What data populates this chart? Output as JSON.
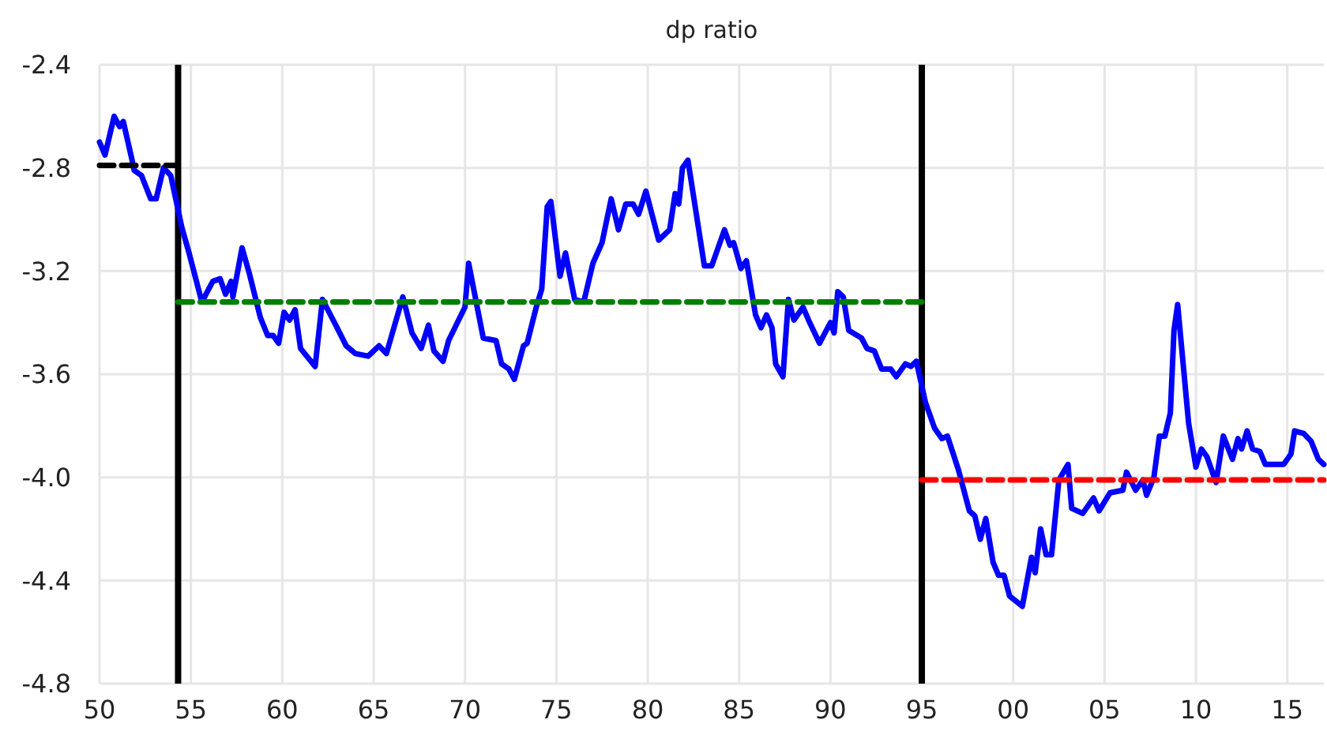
{
  "chart_data": {
    "type": "line",
    "title": "dp ratio",
    "xlim": [
      1950,
      2017
    ],
    "ylim": [
      -4.8,
      -2.4
    ],
    "xticks": [
      {
        "value": 1950,
        "label": "50"
      },
      {
        "value": 1955,
        "label": "55"
      },
      {
        "value": 1960,
        "label": "60"
      },
      {
        "value": 1965,
        "label": "65"
      },
      {
        "value": 1970,
        "label": "70"
      },
      {
        "value": 1975,
        "label": "75"
      },
      {
        "value": 1980,
        "label": "80"
      },
      {
        "value": 1985,
        "label": "85"
      },
      {
        "value": 1990,
        "label": "90"
      },
      {
        "value": 1995,
        "label": "95"
      },
      {
        "value": 2000,
        "label": "00"
      },
      {
        "value": 2005,
        "label": "05"
      },
      {
        "value": 2010,
        "label": "10"
      },
      {
        "value": 2015,
        "label": "15"
      }
    ],
    "yticks": [
      -4.8,
      -4.4,
      {
        "value": -4.0,
        "label": "-4.0"
      },
      -3.6,
      -3.2,
      -2.8,
      -2.4
    ],
    "grid": true,
    "marker": "none",
    "line_style": "solid",
    "series": [
      {
        "color": "#0000ff",
        "x": [
          1950.0,
          1950.3,
          1950.8,
          1951.1,
          1951.3,
          1951.75,
          1951.9,
          1952.3,
          1952.8,
          1953.1,
          1953.5,
          1953.9,
          1954.5,
          1954.9,
          1955.6,
          1956.2,
          1956.6,
          1956.9,
          1957.2,
          1957.3,
          1957.8,
          1958.2,
          1958.8,
          1959.2,
          1959.5,
          1959.8,
          1960.1,
          1960.4,
          1960.7,
          1961.0,
          1961.8,
          1962.2,
          1963.0,
          1963.5,
          1964.0,
          1964.7,
          1965.3,
          1965.7,
          1966.6,
          1967.1,
          1967.6,
          1968.0,
          1968.3,
          1968.8,
          1969.1,
          1970.0,
          1970.2,
          1971.0,
          1971.7,
          1972.0,
          1972.4,
          1972.7,
          1973.2,
          1973.4,
          1973.9,
          1974.2,
          1974.5,
          1974.7,
          1975.2,
          1975.5,
          1976.0,
          1976.5,
          1977.0,
          1977.5,
          1978.0,
          1978.4,
          1978.8,
          1979.2,
          1979.5,
          1979.9,
          1980.6,
          1981.2,
          1981.5,
          1981.7,
          1981.9,
          1982.2,
          1983.1,
          1983.5,
          1984.2,
          1984.5,
          1984.7,
          1985.1,
          1985.4,
          1985.9,
          1986.2,
          1986.5,
          1986.8,
          1987.0,
          1987.4,
          1987.7,
          1988.0,
          1988.5,
          1988.8,
          1989.4,
          1990.0,
          1990.2,
          1990.4,
          1990.7,
          1991.0,
          1991.7,
          1992.0,
          1992.4,
          1992.8,
          1993.3,
          1993.6,
          1994.1,
          1994.4,
          1994.7,
          1995.2,
          1995.7,
          1996.1,
          1996.4,
          1997.0,
          1997.6,
          1997.9,
          1998.2,
          1998.5,
          1998.9,
          1999.2,
          1999.5,
          1999.8,
          2000.5,
          2001.0,
          2001.2,
          2001.5,
          2001.8,
          2002.1,
          2002.5,
          2003.0,
          2003.2,
          2003.8,
          2004.4,
          2004.7,
          2005.3,
          2006.0,
          2006.2,
          2006.7,
          2007.1,
          2007.3,
          2007.7,
          2008.0,
          2008.3,
          2008.6,
          2008.8,
          2009.0,
          2009.3,
          2009.6,
          2010.0,
          2010.3,
          2010.6,
          2011.1,
          2011.5,
          2012.0,
          2012.3,
          2012.5,
          2012.8,
          2013.1,
          2013.5,
          2013.8,
          2014.3,
          2014.8,
          2015.2,
          2015.4,
          2015.9,
          2016.3,
          2016.7,
          2017.0
        ],
        "values": [
          -2.7,
          -2.75,
          -2.6,
          -2.64,
          -2.62,
          -2.76,
          -2.81,
          -2.83,
          -2.92,
          -2.92,
          -2.8,
          -2.83,
          -3.03,
          -3.13,
          -3.32,
          -3.24,
          -3.23,
          -3.29,
          -3.24,
          -3.3,
          -3.11,
          -3.21,
          -3.38,
          -3.45,
          -3.45,
          -3.48,
          -3.36,
          -3.39,
          -3.35,
          -3.5,
          -3.57,
          -3.31,
          -3.42,
          -3.49,
          -3.52,
          -3.53,
          -3.49,
          -3.52,
          -3.3,
          -3.44,
          -3.5,
          -3.41,
          -3.51,
          -3.55,
          -3.47,
          -3.34,
          -3.17,
          -3.46,
          -3.47,
          -3.56,
          -3.58,
          -3.62,
          -3.49,
          -3.48,
          -3.34,
          -3.27,
          -2.95,
          -2.93,
          -3.22,
          -3.13,
          -3.31,
          -3.32,
          -3.17,
          -3.09,
          -2.92,
          -3.04,
          -2.94,
          -2.94,
          -2.98,
          -2.89,
          -3.08,
          -3.04,
          -2.9,
          -2.94,
          -2.8,
          -2.77,
          -3.18,
          -3.18,
          -3.04,
          -3.1,
          -3.09,
          -3.19,
          -3.16,
          -3.37,
          -3.42,
          -3.37,
          -3.42,
          -3.56,
          -3.61,
          -3.31,
          -3.39,
          -3.34,
          -3.39,
          -3.48,
          -3.4,
          -3.44,
          -3.28,
          -3.3,
          -3.43,
          -3.46,
          -3.5,
          -3.51,
          -3.58,
          -3.58,
          -3.61,
          -3.56,
          -3.57,
          -3.55,
          -3.71,
          -3.81,
          -3.85,
          -3.84,
          -3.97,
          -4.13,
          -4.15,
          -4.24,
          -4.16,
          -4.33,
          -4.38,
          -4.38,
          -4.46,
          -4.5,
          -4.31,
          -4.37,
          -4.2,
          -4.3,
          -4.3,
          -4.01,
          -3.95,
          -4.12,
          -4.14,
          -4.08,
          -4.13,
          -4.06,
          -4.05,
          -3.98,
          -4.05,
          -4.01,
          -4.07,
          -4.0,
          -3.84,
          -3.84,
          -3.75,
          -3.43,
          -3.33,
          -3.56,
          -3.79,
          -3.96,
          -3.89,
          -3.92,
          -4.02,
          -3.84,
          -3.93,
          -3.85,
          -3.89,
          -3.82,
          -3.89,
          -3.9,
          -3.95,
          -3.95,
          -3.95,
          -3.91,
          -3.82,
          -3.83,
          -3.86,
          -3.93,
          -3.95
        ]
      },
      {
        "color": "#000000",
        "line_style": "dashed",
        "x": [
          1950,
          1954.3
        ],
        "values": [
          -2.79,
          -2.79
        ]
      },
      {
        "color": "#008000",
        "line_style": "dashed",
        "x": [
          1954.3,
          1995
        ],
        "values": [
          -3.32,
          -3.32
        ]
      },
      {
        "color": "#ff0000",
        "line_style": "dashed",
        "x": [
          1995,
          2017
        ],
        "values": [
          -4.01,
          -4.01
        ]
      }
    ],
    "ref_lines": [
      {
        "axis": "x",
        "value": 1954.3,
        "color": "#000000"
      },
      {
        "axis": "x",
        "value": 1995,
        "color": "#000000"
      }
    ]
  }
}
